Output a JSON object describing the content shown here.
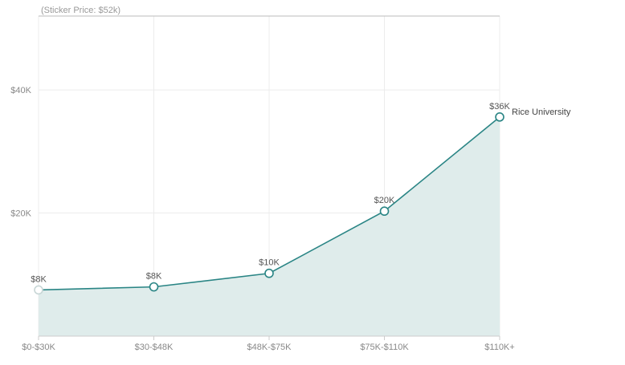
{
  "chart_data": {
    "type": "area",
    "categories": [
      "$0-$30K",
      "$30-$48K",
      "$48K-$75K",
      "$75K-$110K",
      "$110K+"
    ],
    "series": [
      {
        "name": "Rice University",
        "values": [
          7.5,
          8.0,
          10.2,
          20.3,
          35.6
        ],
        "point_labels": [
          "$8K",
          "$8K",
          "$10K",
          "$20K",
          "$36K"
        ]
      }
    ],
    "y_ticks": [
      {
        "value": 20,
        "label": "$20K"
      },
      {
        "value": 40,
        "label": "$40K"
      }
    ],
    "reference_line": {
      "value": 52,
      "label": "(Sticker Price: $52k)"
    },
    "ylim": [
      0,
      52
    ],
    "grid": true,
    "colors": {
      "line": "#2a8585",
      "area": "#dfeceb",
      "marker_fill": "#ffffff",
      "first_marker_stroke": "#c8d6d6",
      "grid": "#ececec",
      "axis": "#cccccc",
      "reference": "#bbbbbb"
    }
  }
}
